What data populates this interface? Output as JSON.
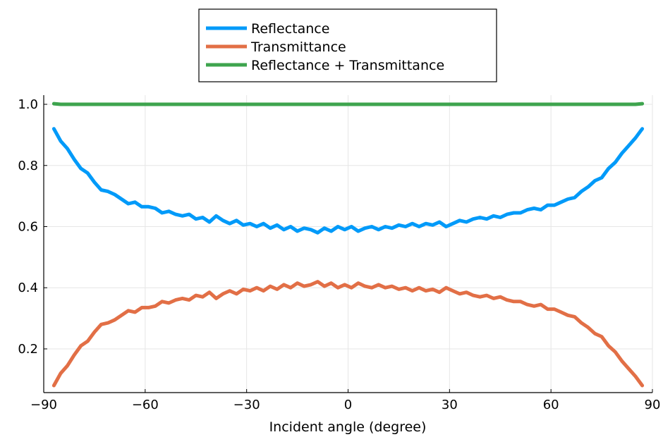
{
  "chart_data": {
    "type": "line",
    "title": "",
    "xlabel": "Incident angle (degree)",
    "ylabel": "",
    "xlim": [
      -90,
      90
    ],
    "ylim": [
      0.057,
      1.03
    ],
    "grid": true,
    "legend_position": "top-center",
    "x_ticks": [
      -90,
      -60,
      -30,
      0,
      30,
      60,
      90
    ],
    "x_tick_labels": [
      "−90",
      "−60",
      "−30",
      "0",
      "30",
      "60",
      "90"
    ],
    "y_ticks": [
      0.2,
      0.4,
      0.6,
      0.8,
      1.0
    ],
    "y_tick_labels": [
      "0.2",
      "0.4",
      "0.6",
      "0.8",
      "1.0"
    ],
    "series": [
      {
        "name": "Reflectance",
        "color": "#009af9",
        "x": [
          -87,
          -85,
          -83,
          -81,
          -79,
          -77,
          -75,
          -73,
          -71,
          -69,
          -67,
          -65,
          -63,
          -61,
          -59,
          -57,
          -55,
          -53,
          -51,
          -49,
          -47,
          -45,
          -43,
          -41,
          -39,
          -37,
          -35,
          -33,
          -31,
          -29,
          -27,
          -25,
          -23,
          -21,
          -19,
          -17,
          -15,
          -13,
          -11,
          -9,
          -7,
          -5,
          -3,
          -1,
          1,
          3,
          5,
          7,
          9,
          11,
          13,
          15,
          17,
          19,
          21,
          23,
          25,
          27,
          29,
          31,
          33,
          35,
          37,
          39,
          41,
          43,
          45,
          47,
          49,
          51,
          53,
          55,
          57,
          59,
          61,
          63,
          65,
          67,
          69,
          71,
          73,
          75,
          77,
          79,
          81,
          83,
          85,
          87
        ],
        "y": [
          0.92,
          0.88,
          0.855,
          0.82,
          0.79,
          0.775,
          0.745,
          0.72,
          0.715,
          0.705,
          0.69,
          0.675,
          0.68,
          0.665,
          0.665,
          0.66,
          0.645,
          0.65,
          0.64,
          0.635,
          0.64,
          0.625,
          0.63,
          0.615,
          0.635,
          0.62,
          0.61,
          0.62,
          0.605,
          0.61,
          0.6,
          0.61,
          0.595,
          0.605,
          0.59,
          0.6,
          0.585,
          0.595,
          0.59,
          0.58,
          0.595,
          0.585,
          0.6,
          0.59,
          0.6,
          0.585,
          0.595,
          0.6,
          0.59,
          0.6,
          0.595,
          0.605,
          0.6,
          0.61,
          0.6,
          0.61,
          0.605,
          0.615,
          0.6,
          0.61,
          0.62,
          0.615,
          0.625,
          0.63,
          0.625,
          0.635,
          0.63,
          0.64,
          0.645,
          0.645,
          0.655,
          0.66,
          0.655,
          0.67,
          0.67,
          0.68,
          0.69,
          0.695,
          0.715,
          0.73,
          0.75,
          0.76,
          0.79,
          0.81,
          0.84,
          0.865,
          0.89,
          0.92
        ]
      },
      {
        "name": "Transmittance",
        "color": "#e26f46",
        "x": [
          -87,
          -85,
          -83,
          -81,
          -79,
          -77,
          -75,
          -73,
          -71,
          -69,
          -67,
          -65,
          -63,
          -61,
          -59,
          -57,
          -55,
          -53,
          -51,
          -49,
          -47,
          -45,
          -43,
          -41,
          -39,
          -37,
          -35,
          -33,
          -31,
          -29,
          -27,
          -25,
          -23,
          -21,
          -19,
          -17,
          -15,
          -13,
          -11,
          -9,
          -7,
          -5,
          -3,
          -1,
          1,
          3,
          5,
          7,
          9,
          11,
          13,
          15,
          17,
          19,
          21,
          23,
          25,
          27,
          29,
          31,
          33,
          35,
          37,
          39,
          41,
          43,
          45,
          47,
          49,
          51,
          53,
          55,
          57,
          59,
          61,
          63,
          65,
          67,
          69,
          71,
          73,
          75,
          77,
          79,
          81,
          83,
          85,
          87
        ],
        "y": [
          0.08,
          0.12,
          0.145,
          0.18,
          0.21,
          0.225,
          0.255,
          0.28,
          0.285,
          0.295,
          0.31,
          0.325,
          0.32,
          0.335,
          0.335,
          0.34,
          0.355,
          0.35,
          0.36,
          0.365,
          0.36,
          0.375,
          0.37,
          0.385,
          0.365,
          0.38,
          0.39,
          0.38,
          0.395,
          0.39,
          0.4,
          0.39,
          0.405,
          0.395,
          0.41,
          0.4,
          0.415,
          0.405,
          0.41,
          0.42,
          0.405,
          0.415,
          0.4,
          0.41,
          0.4,
          0.415,
          0.405,
          0.4,
          0.41,
          0.4,
          0.405,
          0.395,
          0.4,
          0.39,
          0.4,
          0.39,
          0.395,
          0.385,
          0.4,
          0.39,
          0.38,
          0.385,
          0.375,
          0.37,
          0.375,
          0.365,
          0.37,
          0.36,
          0.355,
          0.355,
          0.345,
          0.34,
          0.345,
          0.33,
          0.33,
          0.32,
          0.31,
          0.305,
          0.285,
          0.27,
          0.25,
          0.24,
          0.21,
          0.19,
          0.16,
          0.135,
          0.11,
          0.08
        ]
      },
      {
        "name": "Reflectance + Transmittance",
        "color": "#3ea44e",
        "x": [
          -87,
          -85,
          -60,
          -30,
          0,
          30,
          60,
          85,
          87
        ],
        "y": [
          1.002,
          1.0,
          1.0,
          1.0,
          1.0,
          1.0,
          1.0,
          1.0,
          1.002
        ]
      }
    ]
  }
}
